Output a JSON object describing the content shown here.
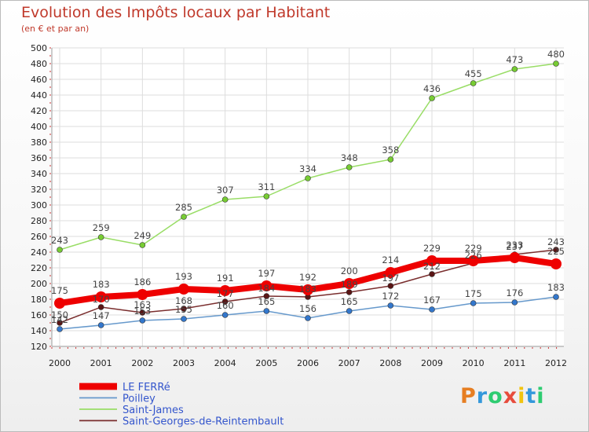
{
  "header": {
    "title": "Evolution des Impôts locaux par Habitant",
    "subtitle": "(en € et par an)"
  },
  "logo": {
    "letters": [
      "P",
      "r",
      "o",
      "x",
      "i",
      "t",
      "i"
    ],
    "colors": [
      "#e67e22",
      "#3498db",
      "#2ecc71",
      "#e74c3c",
      "#f1c40f",
      "#3498db",
      "#2ecc71"
    ]
  },
  "chart_data": {
    "type": "line",
    "title": "Evolution des Impôts locaux par Habitant",
    "subtitle": "(en € et par an)",
    "x": [
      "2000",
      "2001",
      "2002",
      "2003",
      "2004",
      "2005",
      "2006",
      "2007",
      "2008",
      "2009",
      "2010",
      "2011",
      "2012"
    ],
    "ylim": [
      120,
      500
    ],
    "yticks": [
      120,
      140,
      160,
      180,
      200,
      220,
      240,
      260,
      280,
      300,
      320,
      340,
      360,
      380,
      400,
      420,
      440,
      460,
      480,
      500
    ],
    "grid": true,
    "legend_position": "bottom-left",
    "series": [
      {
        "name": "Saint-James",
        "color": "#99dd66",
        "marker": "#77cc33",
        "width": 1.5,
        "radius": 3.5,
        "values": [
          243,
          259,
          249,
          285,
          307,
          311,
          334,
          348,
          358,
          436,
          455,
          473,
          480
        ]
      },
      {
        "name": "Saint-Georges-de-Reintembault",
        "color": "#7a2e2e",
        "marker": "#5a1515",
        "width": 1.5,
        "radius": 3.5,
        "values": [
          150,
          170,
          163,
          168,
          177,
          184,
          183,
          189,
          197,
          212,
          226,
          237,
          243
        ]
      },
      {
        "name": "Poilley",
        "color": "#6699cc",
        "marker": "#3377cc",
        "width": 1.5,
        "radius": 3.5,
        "values": [
          142,
          147,
          153,
          155,
          160,
          165,
          156,
          165,
          172,
          167,
          175,
          176,
          183
        ]
      },
      {
        "name": "LE FERRé",
        "color": "#ee0000",
        "marker": "#ee0000",
        "width": 8,
        "radius": 7,
        "values": [
          175,
          183,
          186,
          193,
          191,
          197,
          192,
          200,
          214,
          229,
          229,
          233,
          225
        ]
      }
    ],
    "legend_order": [
      "LE FERRé",
      "Poilley",
      "Saint-James",
      "Saint-Georges-de-Reintembault"
    ]
  }
}
